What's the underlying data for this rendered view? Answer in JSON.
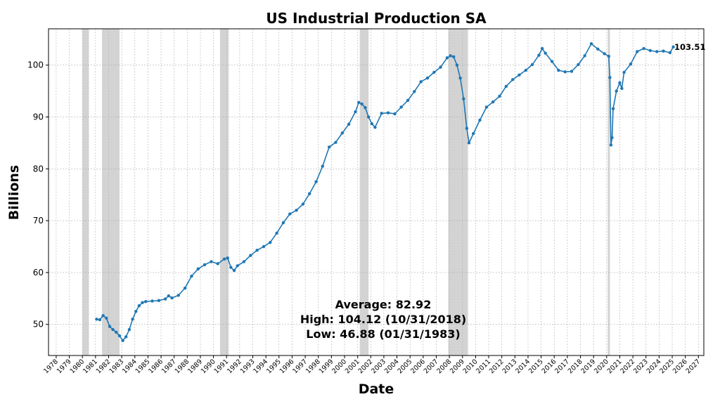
{
  "chart_data": {
    "type": "line",
    "title": "US Industrial Production SA",
    "xlabel": "Date",
    "ylabel": "Billions",
    "xlim": [
      "1977-06-01",
      "2027-06-01"
    ],
    "ylim": [
      44,
      107
    ],
    "yticks": [
      50,
      60,
      70,
      80,
      90,
      100
    ],
    "xtick_years": [
      1978,
      1979,
      1980,
      1981,
      1982,
      1983,
      1984,
      1985,
      1986,
      1987,
      1988,
      1989,
      1990,
      1991,
      1992,
      1993,
      1994,
      1995,
      1996,
      1997,
      1998,
      1999,
      2000,
      2001,
      2002,
      2003,
      2004,
      2005,
      2006,
      2007,
      2008,
      2009,
      2010,
      2011,
      2012,
      2013,
      2014,
      2015,
      2016,
      2017,
      2018,
      2019,
      2020,
      2021,
      2022,
      2023,
      2024,
      2025,
      2026,
      2027
    ],
    "grid": true,
    "line_color": "#1f77b4",
    "recession_color": "#d3d3d3",
    "recessions": [
      {
        "start": "1980-01-01",
        "end": "1980-07-01"
      },
      {
        "start": "1981-07-01",
        "end": "1982-11-01"
      },
      {
        "start": "1990-07-01",
        "end": "1991-03-01"
      },
      {
        "start": "2001-03-01",
        "end": "2001-11-01"
      },
      {
        "start": "2007-12-01",
        "end": "2009-06-01"
      },
      {
        "start": "2020-02-01",
        "end": "2020-04-01"
      }
    ],
    "series": [
      {
        "points": [
          [
            "1981-01-31",
            51.0
          ],
          [
            "1981-04-30",
            50.9
          ],
          [
            "1981-07-31",
            51.7
          ],
          [
            "1981-10-31",
            51.2
          ],
          [
            "1982-01-31",
            49.6
          ],
          [
            "1982-04-30",
            49.0
          ],
          [
            "1982-07-31",
            48.5
          ],
          [
            "1982-10-31",
            47.8
          ],
          [
            "1983-01-31",
            46.88
          ],
          [
            "1983-04-30",
            47.6
          ],
          [
            "1983-07-31",
            49.0
          ],
          [
            "1983-10-31",
            51.0
          ],
          [
            "1984-01-31",
            52.5
          ],
          [
            "1984-04-30",
            53.6
          ],
          [
            "1984-07-31",
            54.2
          ],
          [
            "1984-10-31",
            54.4
          ],
          [
            "1985-04-30",
            54.5
          ],
          [
            "1985-10-31",
            54.6
          ],
          [
            "1986-04-30",
            54.9
          ],
          [
            "1986-07-31",
            55.5
          ],
          [
            "1986-10-31",
            55.1
          ],
          [
            "1987-04-30",
            55.6
          ],
          [
            "1987-10-31",
            57.0
          ],
          [
            "1988-04-30",
            59.3
          ],
          [
            "1988-10-31",
            60.7
          ],
          [
            "1989-04-30",
            61.5
          ],
          [
            "1989-10-31",
            62.1
          ],
          [
            "1990-04-30",
            61.7
          ],
          [
            "1990-10-31",
            62.6
          ],
          [
            "1991-01-31",
            62.8
          ],
          [
            "1991-04-30",
            61.0
          ],
          [
            "1991-07-31",
            60.4
          ],
          [
            "1991-10-31",
            61.3
          ],
          [
            "1992-04-30",
            62.1
          ],
          [
            "1992-10-31",
            63.3
          ],
          [
            "1993-04-30",
            64.3
          ],
          [
            "1993-10-31",
            65.0
          ],
          [
            "1994-04-30",
            65.8
          ],
          [
            "1994-10-31",
            67.6
          ],
          [
            "1995-04-30",
            69.6
          ],
          [
            "1995-10-31",
            71.3
          ],
          [
            "1996-04-30",
            72.0
          ],
          [
            "1996-10-31",
            73.2
          ],
          [
            "1997-04-30",
            75.2
          ],
          [
            "1997-10-31",
            77.5
          ],
          [
            "1998-04-30",
            80.5
          ],
          [
            "1998-10-31",
            84.2
          ],
          [
            "1999-04-30",
            85.1
          ],
          [
            "1999-10-31",
            86.9
          ],
          [
            "2000-04-30",
            88.6
          ],
          [
            "2000-10-31",
            91.0
          ],
          [
            "2001-01-31",
            92.8
          ],
          [
            "2001-04-30",
            92.5
          ],
          [
            "2001-07-31",
            91.8
          ],
          [
            "2001-10-31",
            90.0
          ],
          [
            "2002-01-31",
            88.7
          ],
          [
            "2002-04-30",
            88.0
          ],
          [
            "2002-10-31",
            90.7
          ],
          [
            "2003-04-30",
            90.8
          ],
          [
            "2003-10-31",
            90.6
          ],
          [
            "2004-04-30",
            91.9
          ],
          [
            "2004-10-31",
            93.2
          ],
          [
            "2005-04-30",
            94.9
          ],
          [
            "2005-10-31",
            96.8
          ],
          [
            "2006-04-30",
            97.5
          ],
          [
            "2006-10-31",
            98.6
          ],
          [
            "2007-04-30",
            99.6
          ],
          [
            "2007-10-31",
            101.4
          ],
          [
            "2008-01-31",
            101.8
          ],
          [
            "2008-04-30",
            101.6
          ],
          [
            "2008-07-31",
            100.0
          ],
          [
            "2008-10-31",
            97.5
          ],
          [
            "2009-01-31",
            93.5
          ],
          [
            "2009-04-30",
            87.8
          ],
          [
            "2009-06-30",
            85.0
          ],
          [
            "2009-10-31",
            86.8
          ],
          [
            "2010-04-30",
            89.4
          ],
          [
            "2010-10-31",
            91.9
          ],
          [
            "2011-04-30",
            92.9
          ],
          [
            "2011-10-31",
            94.0
          ],
          [
            "2012-04-30",
            95.9
          ],
          [
            "2012-10-31",
            97.2
          ],
          [
            "2013-04-30",
            98.1
          ],
          [
            "2013-10-31",
            99.0
          ],
          [
            "2014-04-30",
            100.1
          ],
          [
            "2014-10-31",
            101.9
          ],
          [
            "2015-01-31",
            103.2
          ],
          [
            "2015-04-30",
            102.3
          ],
          [
            "2015-10-31",
            100.7
          ],
          [
            "2016-04-30",
            99.0
          ],
          [
            "2016-10-31",
            98.7
          ],
          [
            "2017-04-30",
            98.8
          ],
          [
            "2017-10-31",
            100.1
          ],
          [
            "2018-04-30",
            101.8
          ],
          [
            "2018-10-31",
            104.12
          ],
          [
            "2019-04-30",
            103.1
          ],
          [
            "2019-10-31",
            102.2
          ],
          [
            "2020-02-29",
            101.7
          ],
          [
            "2020-03-31",
            97.6
          ],
          [
            "2020-04-30",
            84.6
          ],
          [
            "2020-05-31",
            86.0
          ],
          [
            "2020-06-30",
            91.6
          ],
          [
            "2020-09-30",
            95.0
          ],
          [
            "2020-12-31",
            96.6
          ],
          [
            "2021-02-28",
            95.5
          ],
          [
            "2021-04-30",
            98.6
          ],
          [
            "2021-10-31",
            100.2
          ],
          [
            "2022-04-30",
            102.6
          ],
          [
            "2022-10-31",
            103.2
          ],
          [
            "2023-04-30",
            102.8
          ],
          [
            "2023-10-31",
            102.6
          ],
          [
            "2024-04-30",
            102.7
          ],
          [
            "2024-10-31",
            102.4
          ],
          [
            "2025-01-31",
            103.51
          ]
        ]
      }
    ],
    "last_value_label": "103.51",
    "stats_lines": [
      "Average: 82.92",
      "High: 104.12 (10/31/2018)",
      "Low: 46.88 (01/31/1983)"
    ]
  }
}
